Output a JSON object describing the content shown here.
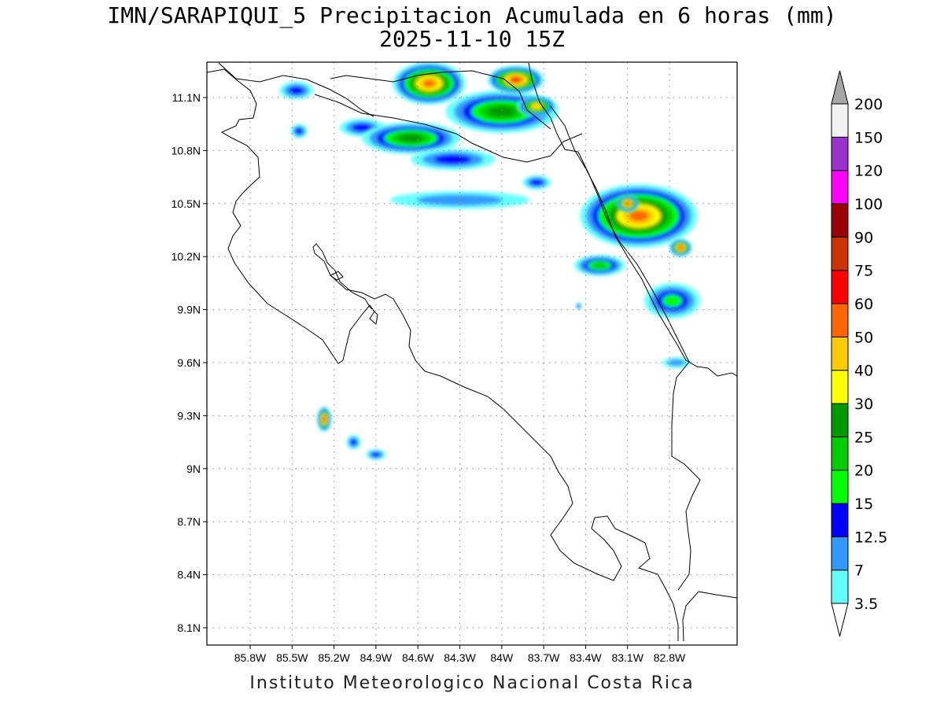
{
  "title": {
    "line1": "IMN/SARAPIQUI_5 Precipitacion Acumulada en 6 horas (mm)",
    "line2": "2025-11-10 15Z"
  },
  "credit": "Instituto Meteorologico Nacional Costa Rica",
  "map": {
    "lon_range": [
      -86.0,
      -83.0
    ],
    "lat_range": [
      8.0,
      11.3
    ],
    "lon_ticks": [
      {
        "value": -85.8,
        "label": "85.8W"
      },
      {
        "value": -85.5,
        "label": "85.5W"
      },
      {
        "value": -85.2,
        "label": "85.2W"
      },
      {
        "value": -84.9,
        "label": "84.9W"
      },
      {
        "value": -84.6,
        "label": "84.6W"
      },
      {
        "value": -84.3,
        "label": "84.3W"
      },
      {
        "value": -84.0,
        "label": "84W"
      },
      {
        "value": -83.7,
        "label": "83.7W"
      },
      {
        "value": -83.4,
        "label": "83.4W"
      },
      {
        "value": -83.1,
        "label": "83.1W"
      },
      {
        "value": -82.8,
        "label": "82.8W"
      }
    ],
    "lat_ticks": [
      {
        "value": 11.1,
        "label": "11.1N"
      },
      {
        "value": 10.8,
        "label": "10.8N"
      },
      {
        "value": 10.5,
        "label": "10.5N"
      },
      {
        "value": 10.2,
        "label": "10.2N"
      },
      {
        "value": 9.9,
        "label": "9.9N"
      },
      {
        "value": 9.6,
        "label": "9.6N"
      },
      {
        "value": 9.3,
        "label": "9.3N"
      },
      {
        "value": 9.0,
        "label": "9N"
      },
      {
        "value": 8.7,
        "label": "8.7N"
      },
      {
        "value": 8.4,
        "label": "8.4N"
      },
      {
        "value": 8.1,
        "label": "8.1N"
      }
    ],
    "grid": true
  },
  "colorbar": {
    "levels": [
      {
        "label": "3.5",
        "color": "#66ffff"
      },
      {
        "label": "7",
        "color": "#3399ff"
      },
      {
        "label": "12.5",
        "color": "#0000ff"
      },
      {
        "label": "15",
        "color": "#00ff00"
      },
      {
        "label": "20",
        "color": "#00cc00"
      },
      {
        "label": "25",
        "color": "#009900"
      },
      {
        "label": "30",
        "color": "#ffff00"
      },
      {
        "label": "40",
        "color": "#ffcc00"
      },
      {
        "label": "50",
        "color": "#ff6600"
      },
      {
        "label": "60",
        "color": "#ff0000"
      },
      {
        "label": "75",
        "color": "#cc3300"
      },
      {
        "label": "90",
        "color": "#990000"
      },
      {
        "label": "100",
        "color": "#ff00ff"
      },
      {
        "label": "120",
        "color": "#9933cc"
      },
      {
        "label": "150",
        "color": "#f2f2f2"
      },
      {
        "label": "200",
        "color": "#a6a6a6"
      }
    ],
    "under_color": "#ffffff"
  },
  "precip_cells": [
    {
      "lon": -85.47,
      "lat": 11.14,
      "rx": 0.12,
      "ry": 0.05,
      "level": 2
    },
    {
      "lon": -85.45,
      "lat": 10.91,
      "rx": 0.06,
      "ry": 0.04,
      "level": 2
    },
    {
      "lon": -85.0,
      "lat": 10.93,
      "rx": 0.16,
      "ry": 0.05,
      "level": 2
    },
    {
      "lon": -84.52,
      "lat": 11.18,
      "rx": 0.26,
      "ry": 0.12,
      "level": 8
    },
    {
      "lon": -84.65,
      "lat": 10.87,
      "rx": 0.35,
      "ry": 0.09,
      "level": 5
    },
    {
      "lon": -84.35,
      "lat": 10.75,
      "rx": 0.3,
      "ry": 0.06,
      "level": 2
    },
    {
      "lon": -84.0,
      "lat": 11.02,
      "rx": 0.4,
      "ry": 0.12,
      "level": 5
    },
    {
      "lon": -83.9,
      "lat": 11.2,
      "rx": 0.2,
      "ry": 0.08,
      "level": 9
    },
    {
      "lon": -83.75,
      "lat": 11.05,
      "rx": 0.14,
      "ry": 0.06,
      "level": 7
    },
    {
      "lon": -84.3,
      "lat": 10.52,
      "rx": 0.5,
      "ry": 0.05,
      "level": 1
    },
    {
      "lon": -83.75,
      "lat": 10.62,
      "rx": 0.1,
      "ry": 0.04,
      "level": 2
    },
    {
      "lon": -83.02,
      "lat": 10.43,
      "rx": 0.42,
      "ry": 0.18,
      "level": 8
    },
    {
      "lon": -83.1,
      "lat": 10.5,
      "rx": 0.08,
      "ry": 0.05,
      "level": 9
    },
    {
      "lon": -82.72,
      "lat": 10.25,
      "rx": 0.08,
      "ry": 0.05,
      "level": 9
    },
    {
      "lon": -83.3,
      "lat": 10.15,
      "rx": 0.18,
      "ry": 0.06,
      "level": 4
    },
    {
      "lon": -82.78,
      "lat": 9.95,
      "rx": 0.2,
      "ry": 0.1,
      "level": 3
    },
    {
      "lon": -82.75,
      "lat": 9.6,
      "rx": 0.1,
      "ry": 0.03,
      "level": 1
    },
    {
      "lon": -85.27,
      "lat": 9.28,
      "rx": 0.05,
      "ry": 0.07,
      "level": 9
    },
    {
      "lon": -85.06,
      "lat": 9.15,
      "rx": 0.05,
      "ry": 0.04,
      "level": 2
    },
    {
      "lon": -84.9,
      "lat": 9.08,
      "rx": 0.07,
      "ry": 0.03,
      "level": 2
    },
    {
      "lon": -83.45,
      "lat": 9.92,
      "rx": 0.02,
      "ry": 0.02,
      "level": 2
    }
  ]
}
